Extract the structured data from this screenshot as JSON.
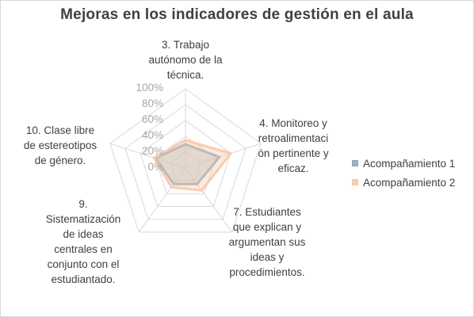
{
  "chart_data": {
    "type": "radar",
    "title": "Mejoras en los indicadores de gestión en el aula",
    "categories": [
      "3. Trabajo autónomo de la técnica.",
      "4. Monitoreo y retroalimentación pertinente y eficaz.",
      "7. Estudiantes que explican y argumentan sus ideas y procedimientos.",
      "9. Sistematización de ideas centrales en conjunto con el estudiantado.",
      "10. Clase libre de estereotipos de género."
    ],
    "category_lines": [
      [
        "3. Trabajo",
        "autónomo de la",
        "técnica."
      ],
      [
        "4. Monitoreo y",
        "retroalimentaci",
        "ón pertinente y",
        "eficaz."
      ],
      [
        "7. Estudiantes",
        "que explican y",
        "argumentan sus",
        "ideas y",
        "procedimientos."
      ],
      [
        "9.",
        "Sistematización",
        "de ideas",
        "centrales en",
        "conjunto con el",
        "estudiantado."
      ],
      [
        "10. Clase libre",
        "de estereotipos",
        "de género."
      ]
    ],
    "tick_labels": [
      "0%",
      "20%",
      "40%",
      "60%",
      "80%",
      "100%"
    ],
    "rlim": [
      0,
      1
    ],
    "series": [
      {
        "name": "Acompañamiento 1",
        "values": [
          0.3,
          0.45,
          0.25,
          0.25,
          0.4
        ],
        "color": "#8eaabf",
        "fill": "#a9b5bd"
      },
      {
        "name": "Acompañamiento 2",
        "values": [
          0.35,
          0.6,
          0.35,
          0.3,
          0.42
        ],
        "color": "#f8cbad",
        "fill": "#f3cfb6"
      }
    ],
    "grid_color": "#d9d9d9",
    "legend_position": "right"
  }
}
